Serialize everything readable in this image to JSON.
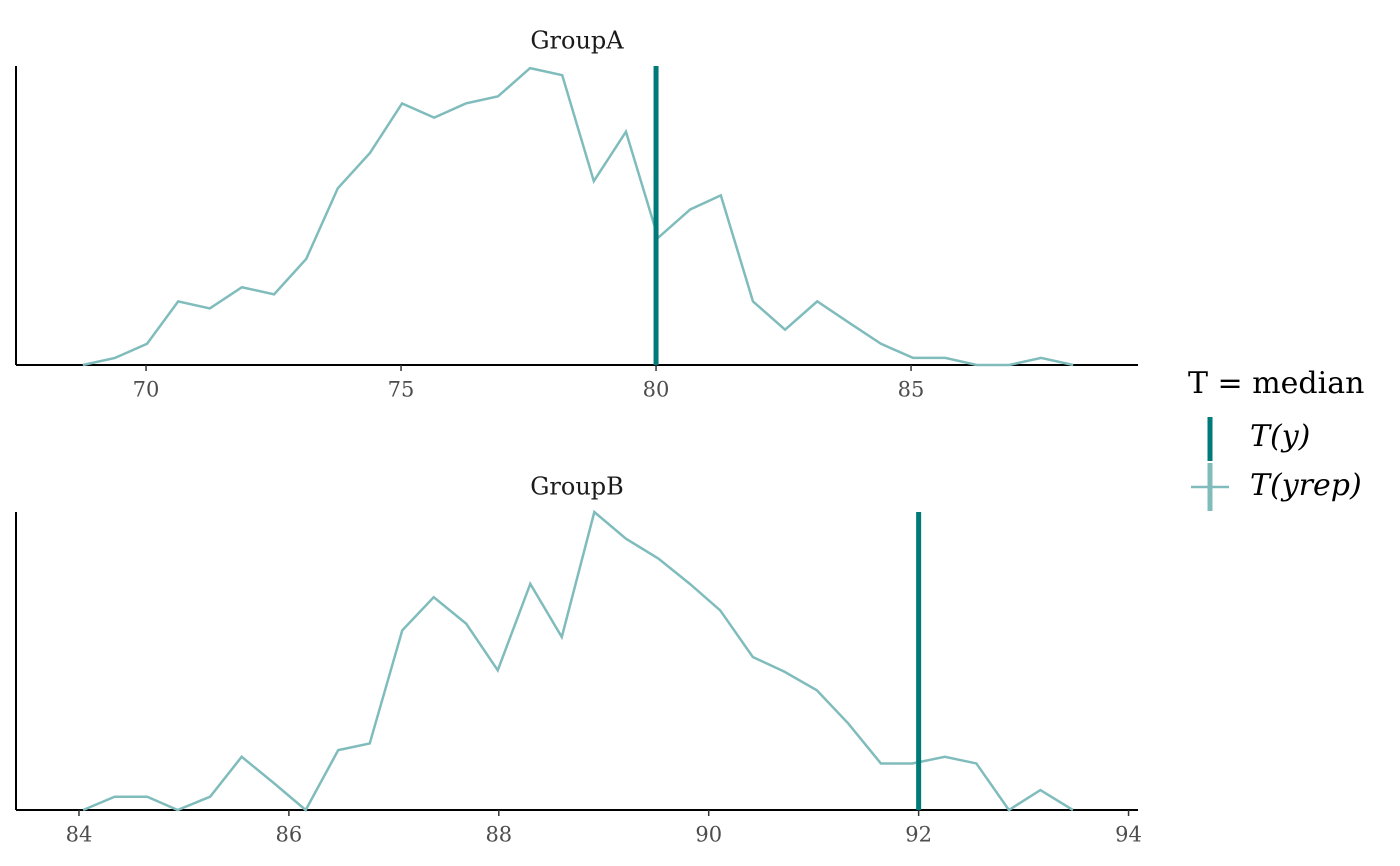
{
  "legend": {
    "title": "T = median",
    "position": "right"
  },
  "chart_data": [
    {
      "type": "line",
      "title": "GroupA",
      "xlim": [
        67.45,
        89.45
      ],
      "xticks": [
        70,
        75,
        80,
        85
      ],
      "ylim": [
        0,
        42.3
      ],
      "x": [
        68.76,
        69.39,
        70.02,
        70.63,
        71.25,
        71.88,
        72.51,
        73.14,
        73.76,
        74.39,
        75.02,
        75.65,
        76.27,
        76.9,
        77.53,
        78.16,
        78.78,
        79.41,
        80.04,
        80.67,
        81.27,
        81.9,
        82.53,
        83.16,
        83.78,
        84.41,
        85.04,
        85.67,
        86.29,
        86.92,
        87.55,
        88.18
      ],
      "series": [
        {
          "name": "T(yrep)",
          "color": "#80bcbc",
          "values": [
            0,
            1,
            3,
            9,
            8,
            11,
            10,
            15,
            25,
            30,
            37,
            35,
            37,
            38,
            42,
            41,
            26,
            33,
            18,
            22,
            24,
            9,
            5,
            9,
            6,
            3,
            1,
            1,
            0,
            0,
            1,
            0
          ]
        }
      ],
      "vlines": [
        {
          "name": "T(y)",
          "color": "#007a78",
          "value": 80
        }
      ]
    },
    {
      "type": "line",
      "title": "GroupB",
      "xlim": [
        83.4,
        94.09
      ],
      "xticks": [
        84,
        86,
        88,
        90,
        92,
        94
      ],
      "ylim": [
        0,
        22.4
      ],
      "x": [
        84.04,
        84.34,
        84.65,
        84.94,
        85.25,
        85.55,
        85.86,
        86.16,
        86.47,
        86.77,
        87.08,
        87.38,
        87.69,
        87.99,
        88.3,
        88.6,
        88.91,
        89.21,
        89.52,
        89.82,
        90.11,
        90.42,
        90.72,
        91.03,
        91.33,
        91.64,
        91.94,
        92.25,
        92.55,
        92.86,
        93.16,
        93.47
      ],
      "series": [
        {
          "color": "#80bcbc",
          "values": [
            0,
            1,
            1,
            0,
            1,
            4,
            2,
            0,
            4.5,
            5,
            13.5,
            16,
            14,
            10.5,
            17,
            13,
            22.4,
            20.4,
            18.9,
            17,
            15,
            11.5,
            10.4,
            9,
            6.5,
            3.5,
            3.5,
            4,
            3.5,
            0,
            1.5,
            0
          ]
        }
      ],
      "vlines": [
        {
          "color": "#007a78",
          "value": 92
        }
      ]
    }
  ]
}
